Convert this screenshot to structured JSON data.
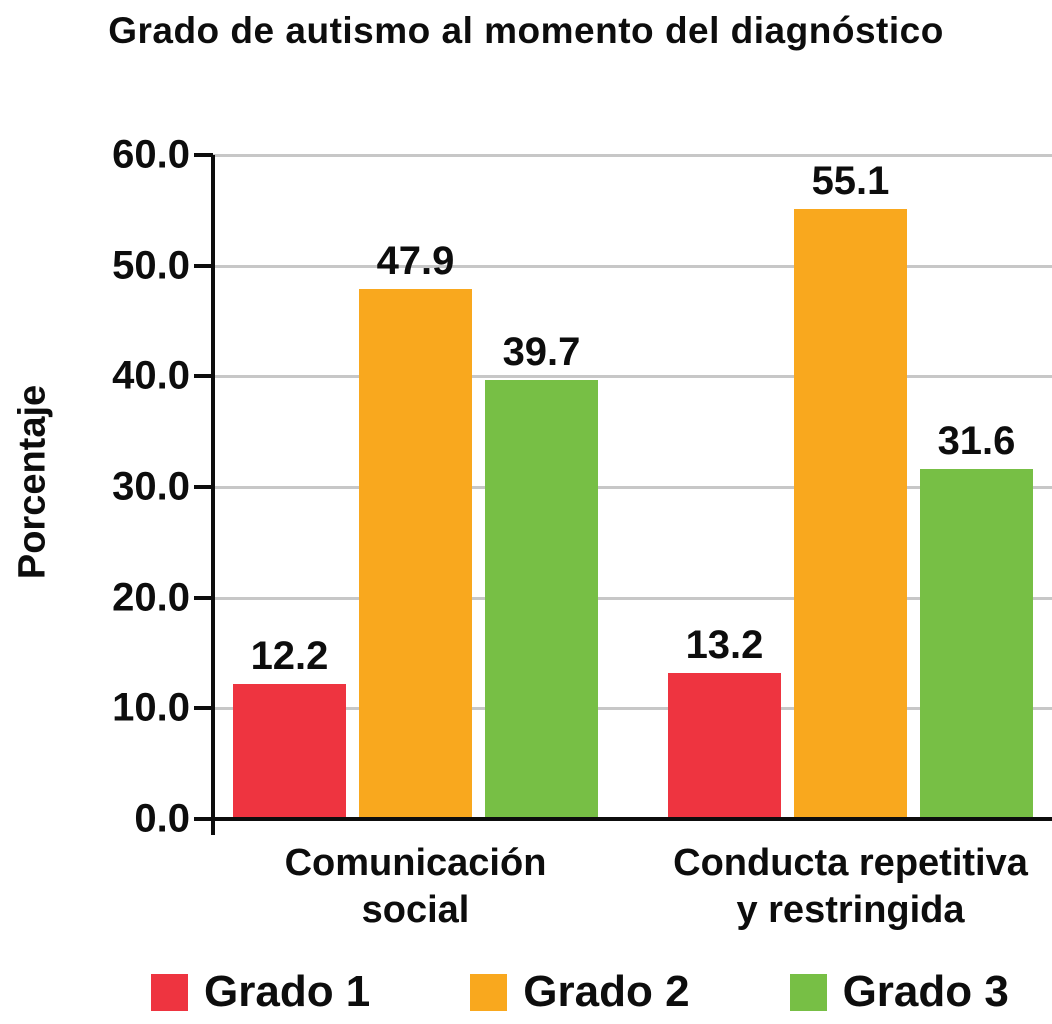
{
  "title": "Grado de autismo al momento del diagnóstico",
  "chart_data": {
    "type": "bar",
    "title": "Grado de autismo al momento del diagnóstico",
    "ylabel": "Porcentaje",
    "xlabel": "",
    "ylim": [
      0,
      60
    ],
    "grid": true,
    "legend_position": "bottom",
    "yticks": [
      {
        "value": 0,
        "label": "0.0"
      },
      {
        "value": 10,
        "label": "10.0"
      },
      {
        "value": 20,
        "label": "20.0"
      },
      {
        "value": 30,
        "label": "30.0"
      },
      {
        "value": 40,
        "label": "40.0"
      },
      {
        "value": 50,
        "label": "50.0"
      },
      {
        "value": 60,
        "label": "60.0"
      }
    ],
    "categories": [
      "Comunicación\nsocial",
      "Conducta repetitiva\ny restringida"
    ],
    "series": [
      {
        "name": "Grado 1",
        "color": "#EE3440",
        "values": [
          12.2,
          13.2
        ],
        "labels": [
          "12.2",
          "13.2"
        ]
      },
      {
        "name": "Grado 2",
        "color": "#F9A81E",
        "values": [
          47.9,
          55.1
        ],
        "labels": [
          "47.9",
          "55.1"
        ]
      },
      {
        "name": "Grado 3",
        "color": "#77BF45",
        "values": [
          39.7,
          31.6
        ],
        "labels": [
          "39.7",
          "31.6"
        ]
      }
    ],
    "colors": {
      "gridline": "#C7C7C7",
      "axis": "#0D0D0D",
      "text": "#0D0D0D"
    }
  }
}
